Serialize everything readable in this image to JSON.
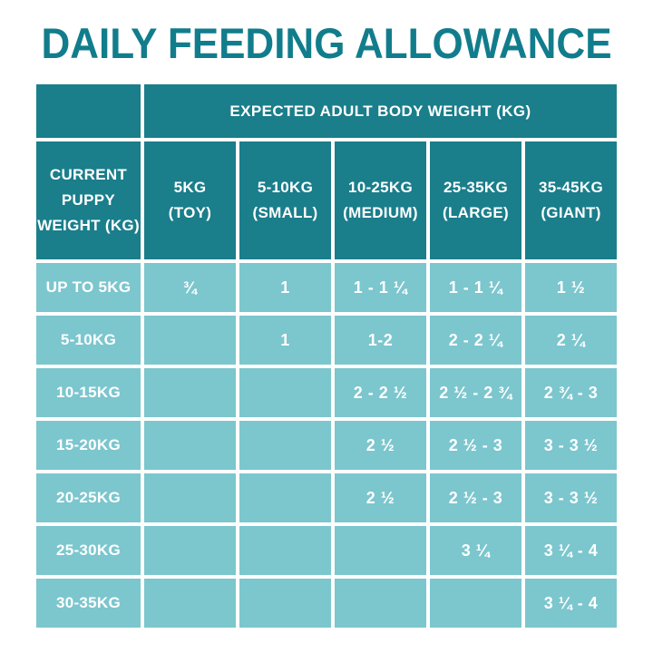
{
  "page": {
    "title": "DAILY FEEDING ALLOWANCE"
  },
  "colors": {
    "title_teal": "#117D8C",
    "header_teal": "#1A7E8B",
    "cell_teal": "#7CC6CE",
    "cell_text": "#FFFFFF",
    "background": "#FFFFFF"
  },
  "table": {
    "group_header": "EXPECTED ADULT BODY WEIGHT (KG)",
    "corner": "",
    "row_header": "CURRENT\nPUPPY\nWEIGHT (KG)",
    "columns": [
      {
        "label": "5KG\n(TOY)"
      },
      {
        "label": "5-10KG\n(SMALL)"
      },
      {
        "label": "10-25KG\n(MEDIUM)"
      },
      {
        "label": "25-35KG\n(LARGE)"
      },
      {
        "label": "35-45KG\n(GIANT)"
      }
    ],
    "rows": [
      {
        "label": "UP TO 5KG",
        "values": [
          "¾",
          "1",
          "1 - 1 ¼",
          "1 - 1 ¼",
          "1 ½"
        ]
      },
      {
        "label": "5-10KG",
        "values": [
          "",
          "1",
          "1-2",
          "2 - 2 ¼",
          "2 ¼"
        ]
      },
      {
        "label": "10-15KG",
        "values": [
          "",
          "",
          "2 - 2 ½",
          "2 ½ - 2 ¾",
          "2 ¾ - 3"
        ]
      },
      {
        "label": "15-20KG",
        "values": [
          "",
          "",
          "2 ½",
          "2 ½ - 3",
          "3 - 3 ½"
        ]
      },
      {
        "label": "20-25KG",
        "values": [
          "",
          "",
          "2 ½",
          "2 ½ - 3",
          "3 - 3 ½"
        ]
      },
      {
        "label": "25-30KG",
        "values": [
          "",
          "",
          "",
          "3 ¼",
          "3 ¼ - 4"
        ]
      },
      {
        "label": "30-35KG",
        "values": [
          "",
          "",
          "",
          "",
          "3 ¼ - 4"
        ]
      }
    ]
  },
  "chart_data": {
    "type": "table",
    "title": "DAILY FEEDING ALLOWANCE",
    "column_group_header": "EXPECTED ADULT BODY WEIGHT (KG)",
    "row_header": "CURRENT PUPPY WEIGHT (KG)",
    "columns": [
      "5KG (TOY)",
      "5-10KG (SMALL)",
      "10-25KG (MEDIUM)",
      "25-35KG (LARGE)",
      "35-45KG (GIANT)"
    ],
    "rows": [
      "UP TO 5KG",
      "5-10KG",
      "10-15KG",
      "15-20KG",
      "20-25KG",
      "25-30KG",
      "30-35KG"
    ],
    "values": [
      [
        "¾",
        "1",
        "1 - 1 ¼",
        "1 - 1 ¼",
        "1 ½"
      ],
      [
        "",
        "1",
        "1-2",
        "2 - 2 ¼",
        "2 ¼"
      ],
      [
        "",
        "",
        "2 - 2 ½",
        "2 ½ - 2 ¾",
        "2 ¾ - 3"
      ],
      [
        "",
        "",
        "2 ½",
        "2 ½ - 3",
        "3 - 3 ½"
      ],
      [
        "",
        "",
        "2 ½",
        "2 ½ - 3",
        "3 - 3 ½"
      ],
      [
        "",
        "",
        "",
        "3 ¼",
        "3 ¼ - 4"
      ],
      [
        "",
        "",
        "",
        "",
        "3 ¼ - 4"
      ]
    ]
  }
}
